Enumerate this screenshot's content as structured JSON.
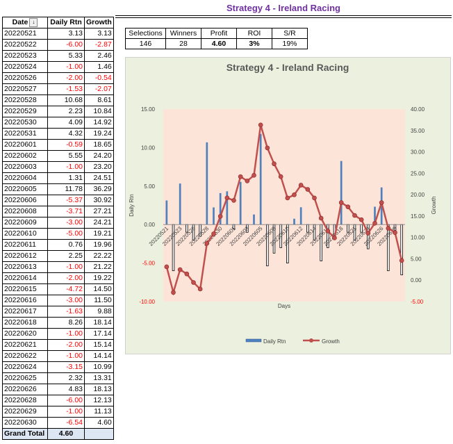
{
  "sheet_title": "Strategy 4 - Ireland Racing",
  "table": {
    "headers": {
      "date": "Date",
      "daily": "Daily Rtn",
      "growth": "Growth"
    },
    "rows": [
      {
        "date": "20220521",
        "daily": "3.13",
        "growth": "3.13"
      },
      {
        "date": "20220522",
        "daily": "-6.00",
        "growth": "-2.87"
      },
      {
        "date": "20220523",
        "daily": "5.33",
        "growth": "2.46"
      },
      {
        "date": "20220524",
        "daily": "-1.00",
        "growth": "1.46"
      },
      {
        "date": "20220526",
        "daily": "-2.00",
        "growth": "-0.54"
      },
      {
        "date": "20220527",
        "daily": "-1.53",
        "growth": "-2.07"
      },
      {
        "date": "20220528",
        "daily": "10.68",
        "growth": "8.61"
      },
      {
        "date": "20220529",
        "daily": "2.23",
        "growth": "10.84"
      },
      {
        "date": "20220530",
        "daily": "4.09",
        "growth": "14.92"
      },
      {
        "date": "20220531",
        "daily": "4.32",
        "growth": "19.24"
      },
      {
        "date": "20220601",
        "daily": "-0.59",
        "growth": "18.65"
      },
      {
        "date": "20220602",
        "daily": "5.55",
        "growth": "24.20"
      },
      {
        "date": "20220603",
        "daily": "-1.00",
        "growth": "23.20"
      },
      {
        "date": "20220604",
        "daily": "1.31",
        "growth": "24.51"
      },
      {
        "date": "20220605",
        "daily": "11.78",
        "growth": "36.29"
      },
      {
        "date": "20220606",
        "daily": "-5.37",
        "growth": "30.92"
      },
      {
        "date": "20220608",
        "daily": "-3.71",
        "growth": "27.21"
      },
      {
        "date": "20220609",
        "daily": "-3.00",
        "growth": "24.21"
      },
      {
        "date": "20220610",
        "daily": "-5.00",
        "growth": "19.21"
      },
      {
        "date": "20220611",
        "daily": "0.76",
        "growth": "19.96"
      },
      {
        "date": "20220612",
        "daily": "2.25",
        "growth": "22.22"
      },
      {
        "date": "20220613",
        "daily": "-1.00",
        "growth": "21.22"
      },
      {
        "date": "20220614",
        "daily": "-2.00",
        "growth": "19.22"
      },
      {
        "date": "20220615",
        "daily": "-4.72",
        "growth": "14.50"
      },
      {
        "date": "20220616",
        "daily": "-3.00",
        "growth": "11.50"
      },
      {
        "date": "20220617",
        "daily": "-1.63",
        "growth": "9.88"
      },
      {
        "date": "20220618",
        "daily": "8.26",
        "growth": "18.14"
      },
      {
        "date": "20220620",
        "daily": "-1.00",
        "growth": "17.14"
      },
      {
        "date": "20220621",
        "daily": "-2.00",
        "growth": "15.14"
      },
      {
        "date": "20220622",
        "daily": "-1.00",
        "growth": "14.14"
      },
      {
        "date": "20220624",
        "daily": "-3.15",
        "growth": "10.99"
      },
      {
        "date": "20220625",
        "daily": "2.32",
        "growth": "13.31"
      },
      {
        "date": "20220626",
        "daily": "4.83",
        "growth": "18.13"
      },
      {
        "date": "20220628",
        "daily": "-6.00",
        "growth": "12.13"
      },
      {
        "date": "20220629",
        "daily": "-1.00",
        "growth": "11.13"
      },
      {
        "date": "20220630",
        "daily": "-6.54",
        "growth": "4.60"
      }
    ],
    "total_label": "Grand Total",
    "total_value": "4.60"
  },
  "stats": {
    "headers": [
      "Selections",
      "Winners",
      "Profit",
      "ROI",
      "S/R"
    ],
    "values": [
      "146",
      "28",
      "4.60",
      "3%",
      "19%"
    ]
  },
  "chart_data": {
    "type": "bar+line",
    "title": "Strategy 4 - Ireland Racing",
    "xlabel": "Days",
    "ylabel_left": "Daily Rtn",
    "ylabel_right": "Growth",
    "ylim_left": [
      -10,
      15
    ],
    "ylim_right": [
      -5,
      40
    ],
    "yticks_left": [
      "15.00",
      "10.00",
      "5.00",
      "0.00",
      "-5.00",
      "-10.00"
    ],
    "yticks_right": [
      "40.00",
      "35.00",
      "30.00",
      "25.00",
      "20.00",
      "15.00",
      "10.00",
      "5.00",
      "0.00",
      "-5.00"
    ],
    "x_tick_labels": [
      "20220521",
      "20220523",
      "20220526",
      "20220528",
      "20220530",
      "20220601",
      "20220603",
      "20220605",
      "20220608",
      "20220610",
      "20220612",
      "20220614",
      "20220616",
      "20220618",
      "20220621",
      "20220624",
      "20220626",
      "20220629"
    ],
    "categories": [
      "20220521",
      "20220522",
      "20220523",
      "20220524",
      "20220526",
      "20220527",
      "20220528",
      "20220529",
      "20220530",
      "20220531",
      "20220601",
      "20220602",
      "20220603",
      "20220604",
      "20220605",
      "20220606",
      "20220608",
      "20220609",
      "20220610",
      "20220611",
      "20220612",
      "20220613",
      "20220614",
      "20220615",
      "20220616",
      "20220617",
      "20220618",
      "20220620",
      "20220621",
      "20220622",
      "20220624",
      "20220625",
      "20220626",
      "20220628",
      "20220629",
      "20220630"
    ],
    "series": [
      {
        "name": "Daily Rtn",
        "kind": "bar",
        "axis": "left",
        "color": "#4f81bd",
        "values": [
          3.13,
          -6.0,
          5.33,
          -1.0,
          -2.0,
          -1.53,
          10.68,
          2.23,
          4.09,
          4.32,
          -0.59,
          5.55,
          -1.0,
          1.31,
          11.78,
          -5.37,
          -3.71,
          -3.0,
          -5.0,
          0.76,
          2.25,
          -1.0,
          -2.0,
          -4.72,
          -3.0,
          -1.63,
          8.26,
          -1.0,
          -2.0,
          -1.0,
          -3.15,
          2.32,
          4.83,
          -6.0,
          -1.0,
          -6.54
        ]
      },
      {
        "name": "Growth",
        "kind": "line",
        "axis": "right",
        "color": "#c0504d",
        "values": [
          3.13,
          -2.87,
          2.46,
          1.46,
          -0.54,
          -2.07,
          8.61,
          10.84,
          14.92,
          19.24,
          18.65,
          24.2,
          23.2,
          24.51,
          36.29,
          30.92,
          27.21,
          24.21,
          19.21,
          19.96,
          22.22,
          21.22,
          19.22,
          14.5,
          11.5,
          9.88,
          18.14,
          17.14,
          15.14,
          14.14,
          10.99,
          13.31,
          18.13,
          12.13,
          11.13,
          4.6
        ]
      }
    ],
    "legend_position": "bottom"
  }
}
